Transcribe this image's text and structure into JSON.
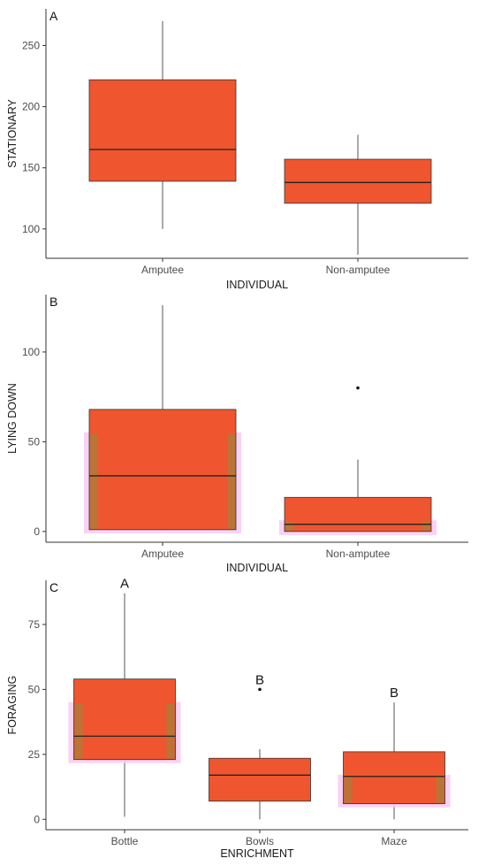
{
  "colors": {
    "box_fill": "#EF552E",
    "box_border": "#333333",
    "halo": "#F9CCF3",
    "inner_stripe": "#B07A38",
    "axis": "#333333"
  },
  "chart_data": [
    {
      "type": "box",
      "panel": "A",
      "xlabel": "INDIVIDUAL",
      "ylabel": "STATIONARY",
      "categories": [
        "Amputee",
        "Non-amputee"
      ],
      "ylim": [
        76,
        280
      ],
      "yticks": [
        100,
        150,
        200,
        250
      ],
      "boxes": [
        {
          "category": "Amputee",
          "min": 100,
          "q1": 139,
          "median": 165,
          "q3": 222,
          "max": 270,
          "outliers": [],
          "styled": false
        },
        {
          "category": "Non-amputee",
          "min": 79,
          "q1": 121,
          "median": 138,
          "q3": 157,
          "max": 177,
          "outliers": [],
          "styled": false
        }
      ],
      "annotations": []
    },
    {
      "type": "box",
      "panel": "B",
      "xlabel": "INDIVIDUAL",
      "ylabel": "LYING DOWN",
      "categories": [
        "Amputee",
        "Non-amputee"
      ],
      "ylim": [
        -6,
        132
      ],
      "yticks": [
        0,
        50,
        100
      ],
      "boxes": [
        {
          "category": "Amputee",
          "min": 0,
          "q1": 1,
          "median": 31,
          "q3": 68,
          "max": 126,
          "outliers": [],
          "styled": true
        },
        {
          "category": "Non-amputee",
          "min": 0,
          "q1": 0,
          "median": 4,
          "q3": 19,
          "max": 40,
          "outliers": [
            80
          ],
          "styled": true
        }
      ],
      "annotations": []
    },
    {
      "type": "box",
      "panel": "C",
      "xlabel": "ENRICHMENT",
      "ylabel": "FORAGING",
      "categories": [
        "Bottle",
        "Bowls",
        "Maze"
      ],
      "ylim": [
        -4,
        92
      ],
      "yticks": [
        0,
        25,
        50,
        75
      ],
      "boxes": [
        {
          "category": "Bottle",
          "min": 1,
          "q1": 23,
          "median": 32,
          "q3": 54,
          "max": 87,
          "outliers": [],
          "styled": true
        },
        {
          "category": "Bowls",
          "min": 0,
          "q1": 7,
          "median": 17,
          "q3": 23.5,
          "max": 27,
          "outliers": [
            50
          ],
          "styled": false
        },
        {
          "category": "Maze",
          "min": 0,
          "q1": 6,
          "median": 16.5,
          "q3": 26,
          "max": 45,
          "outliers": [],
          "styled": true
        }
      ],
      "annotations": [
        {
          "category": "Bottle",
          "text": "A",
          "y": 87
        },
        {
          "category": "Bowls",
          "text": "B",
          "y": 50
        },
        {
          "category": "Maze",
          "text": "B",
          "y": 45
        }
      ]
    }
  ]
}
